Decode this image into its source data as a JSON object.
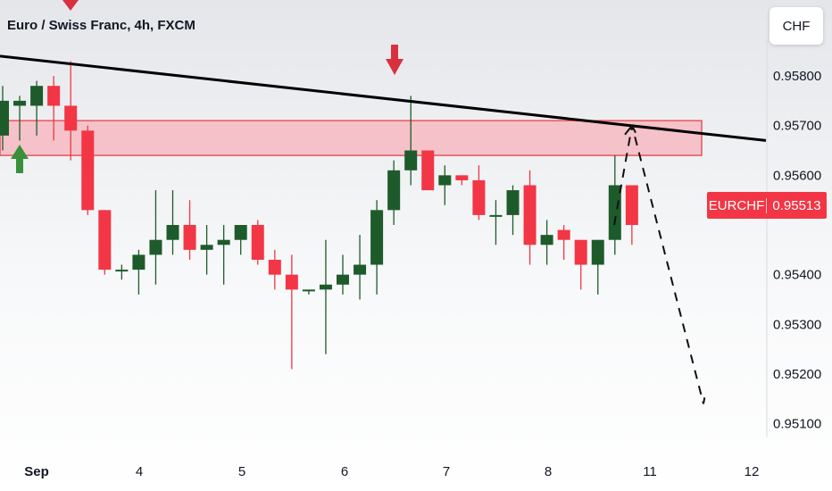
{
  "header": {
    "title": "Euro / Swiss Franc, 4h, FXCM",
    "currency": "CHF"
  },
  "price_tag": {
    "symbol": "EURCHF",
    "value": "0.95513"
  },
  "colors": {
    "up": "#1e5b2a",
    "down": "#f23645",
    "zone_fill": "#f5b3b9",
    "zone_stroke": "#e8545f",
    "trendline": "#000000",
    "arrow_down": "#d93040",
    "arrow_up": "#3a8f3a"
  },
  "chart_data": {
    "type": "candlestick",
    "title": "Euro / Swiss Franc, 4h, FXCM",
    "x_ticks": [
      "Sep",
      "4",
      "5",
      "6",
      "7",
      "8",
      "11",
      "12"
    ],
    "y_ticks": [
      "0.95800",
      "0.95700",
      "0.95600",
      "0.95400",
      "0.95300",
      "0.95200",
      "0.95100"
    ],
    "ylim": [
      0.9504,
      0.95872
    ],
    "candles": [
      {
        "o": 0.9568,
        "h": 0.9578,
        "l": 0.9565,
        "c": 0.9575
      },
      {
        "o": 0.9574,
        "h": 0.9576,
        "l": 0.9567,
        "c": 0.9575
      },
      {
        "o": 0.9574,
        "h": 0.9579,
        "l": 0.9568,
        "c": 0.9578
      },
      {
        "o": 0.9578,
        "h": 0.958,
        "l": 0.9567,
        "c": 0.9574
      },
      {
        "o": 0.9574,
        "h": 0.9583,
        "l": 0.9563,
        "c": 0.9569
      },
      {
        "o": 0.9569,
        "h": 0.957,
        "l": 0.9552,
        "c": 0.9553
      },
      {
        "o": 0.9553,
        "h": 0.9553,
        "l": 0.954,
        "c": 0.9541
      },
      {
        "o": 0.9541,
        "h": 0.9542,
        "l": 0.9539,
        "c": 0.9541
      },
      {
        "o": 0.9541,
        "h": 0.9545,
        "l": 0.9536,
        "c": 0.9544
      },
      {
        "o": 0.9544,
        "h": 0.9557,
        "l": 0.9538,
        "c": 0.9547
      },
      {
        "o": 0.9547,
        "h": 0.9557,
        "l": 0.9544,
        "c": 0.955
      },
      {
        "o": 0.955,
        "h": 0.9555,
        "l": 0.9543,
        "c": 0.9545
      },
      {
        "o": 0.9545,
        "h": 0.955,
        "l": 0.954,
        "c": 0.9546
      },
      {
        "o": 0.9546,
        "h": 0.955,
        "l": 0.9538,
        "c": 0.9547
      },
      {
        "o": 0.9547,
        "h": 0.955,
        "l": 0.9544,
        "c": 0.955
      },
      {
        "o": 0.955,
        "h": 0.9551,
        "l": 0.9542,
        "c": 0.9543
      },
      {
        "o": 0.9543,
        "h": 0.9545,
        "l": 0.9537,
        "c": 0.954
      },
      {
        "o": 0.954,
        "h": 0.9544,
        "l": 0.9521,
        "c": 0.9537
      },
      {
        "o": 0.9537,
        "h": 0.9537,
        "l": 0.9536,
        "c": 0.9537
      },
      {
        "o": 0.9537,
        "h": 0.9547,
        "l": 0.9524,
        "c": 0.9538
      },
      {
        "o": 0.9538,
        "h": 0.9544,
        "l": 0.9536,
        "c": 0.954
      },
      {
        "o": 0.954,
        "h": 0.9548,
        "l": 0.9535,
        "c": 0.9542
      },
      {
        "o": 0.9542,
        "h": 0.9555,
        "l": 0.9536,
        "c": 0.9553
      },
      {
        "o": 0.9553,
        "h": 0.9563,
        "l": 0.955,
        "c": 0.9561
      },
      {
        "o": 0.9561,
        "h": 0.9576,
        "l": 0.9558,
        "c": 0.9565
      },
      {
        "o": 0.9565,
        "h": 0.9565,
        "l": 0.9557,
        "c": 0.9557
      },
      {
        "o": 0.9558,
        "h": 0.9562,
        "l": 0.9554,
        "c": 0.956
      },
      {
        "o": 0.956,
        "h": 0.956,
        "l": 0.9558,
        "c": 0.9559
      },
      {
        "o": 0.9559,
        "h": 0.9562,
        "l": 0.9551,
        "c": 0.9552
      },
      {
        "o": 0.9552,
        "h": 0.9555,
        "l": 0.9546,
        "c": 0.9552
      },
      {
        "o": 0.9552,
        "h": 0.9558,
        "l": 0.9548,
        "c": 0.9557
      },
      {
        "o": 0.9558,
        "h": 0.9561,
        "l": 0.9542,
        "c": 0.9546
      },
      {
        "o": 0.9546,
        "h": 0.9551,
        "l": 0.9542,
        "c": 0.9548
      },
      {
        "o": 0.9549,
        "h": 0.955,
        "l": 0.9543,
        "c": 0.9547
      },
      {
        "o": 0.9547,
        "h": 0.9547,
        "l": 0.9537,
        "c": 0.9542
      },
      {
        "o": 0.9542,
        "h": 0.9547,
        "l": 0.9536,
        "c": 0.9547
      },
      {
        "o": 0.9547,
        "h": 0.9564,
        "l": 0.9544,
        "c": 0.9558
      },
      {
        "o": 0.9558,
        "h": 0.9558,
        "l": 0.9546,
        "c": 0.955
      }
    ],
    "trendline": {
      "start": 0.9584,
      "end": 0.9567
    },
    "resistance_zone": {
      "low": 0.9564,
      "high": 0.9571
    },
    "projection": [
      0.955,
      0.957,
      0.9514,
      0.9516
    ],
    "last_price": 0.95513
  }
}
